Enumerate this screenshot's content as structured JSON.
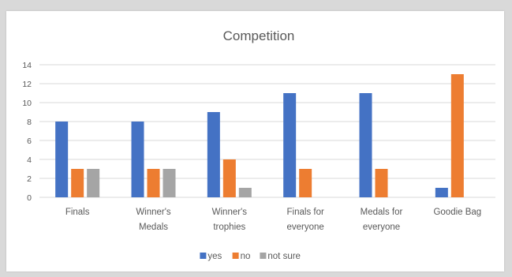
{
  "chart_data": {
    "type": "bar",
    "title": "Competition",
    "xlabel": "",
    "ylabel": "",
    "ylim": [
      0,
      14
    ],
    "yticks": [
      0,
      2,
      4,
      6,
      8,
      10,
      12,
      14
    ],
    "grid": true,
    "legend_position": "bottom",
    "categories": [
      [
        "Finals"
      ],
      [
        "Winner's",
        "Medals"
      ],
      [
        "Winner's",
        "trophies"
      ],
      [
        "Finals for",
        "everyone"
      ],
      [
        "Medals for",
        "everyone"
      ],
      [
        "Goodie Bag"
      ]
    ],
    "series": [
      {
        "name": "yes",
        "color": "#4472c4",
        "values": [
          8,
          8,
          9,
          11,
          11,
          1
        ]
      },
      {
        "name": "no",
        "color": "#ed7d31",
        "values": [
          3,
          3,
          4,
          3,
          3,
          13
        ]
      },
      {
        "name": "not sure",
        "color": "#a5a5a5",
        "values": [
          3,
          3,
          1,
          0,
          0,
          0
        ]
      }
    ]
  }
}
